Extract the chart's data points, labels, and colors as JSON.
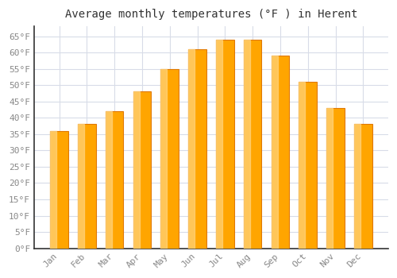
{
  "title": "Average monthly temperatures (°F ) in Herent",
  "months": [
    "Jan",
    "Feb",
    "Mar",
    "Apr",
    "May",
    "Jun",
    "Jul",
    "Aug",
    "Sep",
    "Oct",
    "Nov",
    "Dec"
  ],
  "values": [
    36,
    38,
    42,
    48,
    55,
    61,
    64,
    64,
    59,
    51,
    43,
    38
  ],
  "bar_color_main": "#FFA500",
  "bar_color_light": "#FFD580",
  "bar_color_dark": "#E07800",
  "background_color": "#ffffff",
  "plot_background_color": "#ffffff",
  "grid_color": "#d8dce8",
  "yticks": [
    0,
    5,
    10,
    15,
    20,
    25,
    30,
    35,
    40,
    45,
    50,
    55,
    60,
    65
  ],
  "ylim": [
    0,
    68
  ],
  "title_fontsize": 10,
  "tick_fontsize": 8,
  "tick_color": "#888888",
  "axis_color": "#333333",
  "bar_width": 0.65
}
